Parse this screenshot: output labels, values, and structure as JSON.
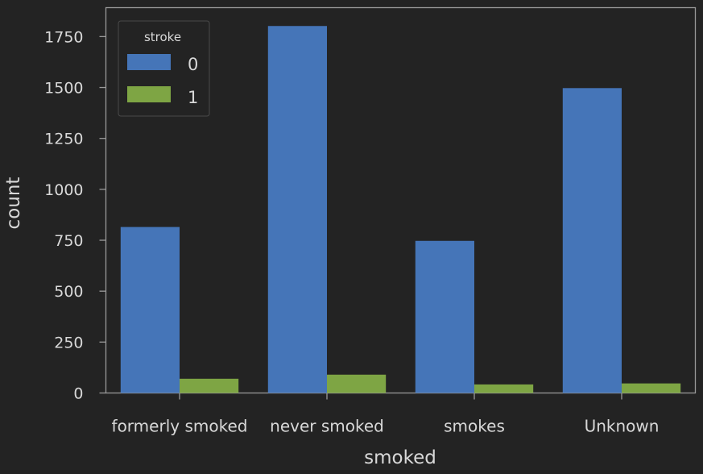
{
  "chart_data": {
    "type": "bar",
    "categories": [
      "formerly smoked",
      "never smoked",
      "smokes",
      "Unknown"
    ],
    "series": [
      {
        "name": "0",
        "color": "#4575b8",
        "values": [
          815,
          1802,
          747,
          1497
        ]
      },
      {
        "name": "1",
        "color": "#7ea544",
        "values": [
          70,
          90,
          42,
          47
        ]
      }
    ],
    "xlabel": "smoked",
    "ylabel": "count",
    "yticks": [
      0,
      250,
      500,
      750,
      1000,
      1250,
      1500,
      1750
    ],
    "ylim": [
      0,
      1892
    ],
    "legend": {
      "title": "stroke",
      "placement": "top-left"
    },
    "grid": false,
    "theme": {
      "background": "#232323",
      "axis_color": "#9a9a9a",
      "text_color": "#d8d8d8"
    }
  }
}
